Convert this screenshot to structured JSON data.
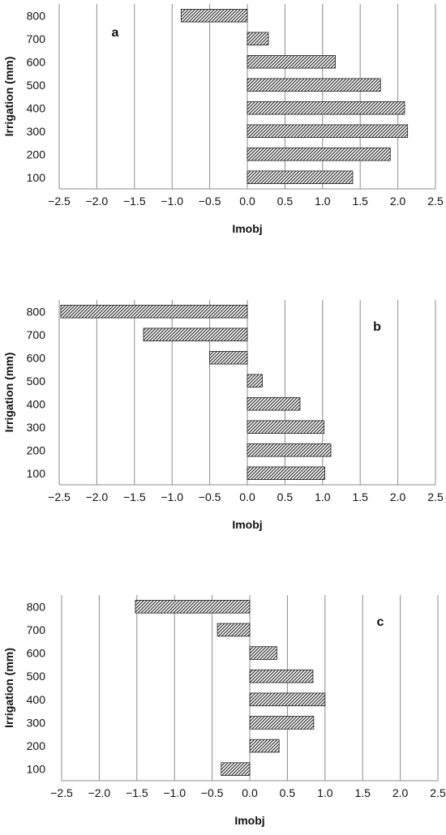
{
  "chart_data": [
    {
      "type": "bar",
      "orientation": "horizontal",
      "panel_label": "a",
      "xlabel": "Imobj",
      "ylabel": "Irrigation (mm)",
      "xlim": [
        -2.5,
        2.5
      ],
      "xticks": [
        "−2.5",
        "−2.0",
        "−1.5",
        "−1.0",
        "−0.5",
        "0.0",
        "0.5",
        "1.0",
        "1.5",
        "2.0",
        "2.5"
      ],
      "grid": "vertical",
      "categories": [
        "100",
        "200",
        "300",
        "400",
        "500",
        "600",
        "700",
        "800"
      ],
      "values": [
        1.4,
        1.9,
        2.13,
        2.09,
        1.77,
        1.17,
        0.28,
        -0.88
      ]
    },
    {
      "type": "bar",
      "orientation": "horizontal",
      "panel_label": "b",
      "xlabel": "Imobj",
      "ylabel": "Irrigation (mm)",
      "xlim": [
        -2.5,
        2.5
      ],
      "xticks": [
        "−2.5",
        "−2.0",
        "−1.5",
        "−1.0",
        "−0.5",
        "0.0",
        "0.5",
        "1.0",
        "1.5",
        "2.0",
        "2.5"
      ],
      "grid": "vertical",
      "categories": [
        "100",
        "200",
        "300",
        "400",
        "500",
        "600",
        "700",
        "800"
      ],
      "values": [
        1.03,
        1.11,
        1.02,
        0.7,
        0.2,
        -0.5,
        -1.38,
        -2.48
      ]
    },
    {
      "type": "bar",
      "orientation": "horizontal",
      "panel_label": "c",
      "xlabel": "Imobj",
      "ylabel": "Irrigation (mm)",
      "xlim": [
        -2.5,
        2.5
      ],
      "xticks": [
        "−2.5",
        "−2.0",
        "−1.5",
        "−1.0",
        "−0.5",
        "0.0",
        "0.5",
        "1.0",
        "1.5",
        "2.0",
        "2.5"
      ],
      "grid": "vertical",
      "categories": [
        "100",
        "200",
        "300",
        "400",
        "500",
        "600",
        "700",
        "800"
      ],
      "values": [
        -0.38,
        0.39,
        0.85,
        1.0,
        0.84,
        0.36,
        -0.43,
        -1.52
      ]
    }
  ]
}
